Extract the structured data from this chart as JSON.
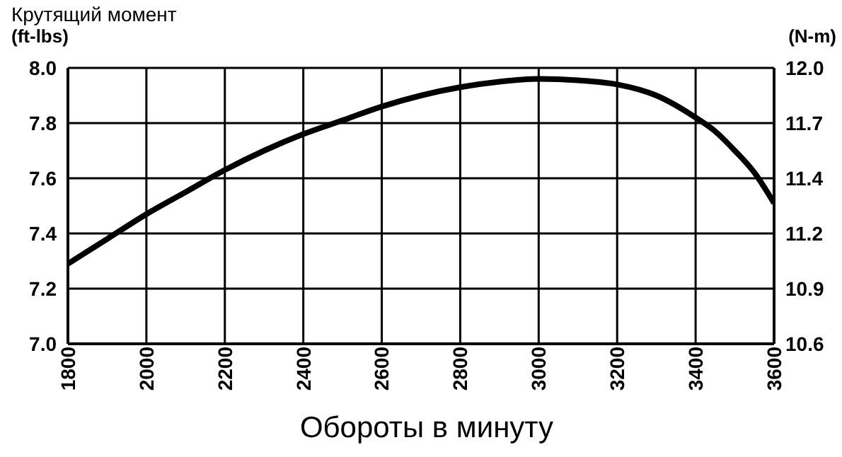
{
  "chart_data": {
    "type": "line",
    "title": "Крутящий момент",
    "ylabel": "(ft-lbs)",
    "y2label": "(N-m)",
    "xlabel": "Обороты в минуту",
    "x": [
      1800,
      1900,
      2000,
      2100,
      2200,
      2300,
      2400,
      2500,
      2600,
      2700,
      2800,
      2900,
      3000,
      3100,
      3200,
      3300,
      3400,
      3450,
      3500,
      3550,
      3600
    ],
    "series": [
      {
        "color": "#000000",
        "values": [
          7.29,
          7.38,
          7.47,
          7.55,
          7.63,
          7.7,
          7.76,
          7.81,
          7.86,
          7.9,
          7.93,
          7.95,
          7.96,
          7.955,
          7.94,
          7.9,
          7.82,
          7.77,
          7.7,
          7.62,
          7.51
        ]
      }
    ],
    "xlim": [
      1800,
      3600
    ],
    "xticks": [
      1800,
      2000,
      2200,
      2400,
      2600,
      2800,
      3000,
      3200,
      3400,
      3600
    ],
    "ylim": [
      7.0,
      8.0
    ],
    "yticks": [
      {
        "value": 7.0,
        "label": "7.0"
      },
      7.2,
      7.4,
      7.6,
      7.8,
      {
        "value": 8.0,
        "label": "8.0"
      }
    ],
    "y2lim": [
      10.6,
      12.0
    ],
    "y2ticks": [
      10.6,
      {
        "value": 10.88,
        "label": "10.9"
      },
      {
        "value": 11.16,
        "label": "11.2"
      },
      {
        "value": 11.44,
        "label": "11.4"
      },
      {
        "value": 11.72,
        "label": "11.7"
      },
      {
        "value": 12.0,
        "label": "12.0"
      }
    ],
    "grid": true,
    "marker": "none",
    "line_style": "solid"
  }
}
